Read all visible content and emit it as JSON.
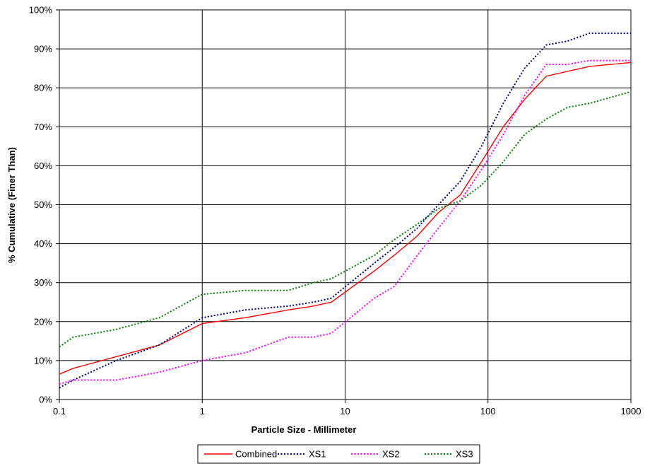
{
  "chart_data": {
    "type": "line",
    "title": "",
    "xlabel": "Particle Size - Millimeter",
    "ylabel": "% Cumulative (Finer Than)",
    "x_scale": "log",
    "xlim": [
      0.1,
      1000
    ],
    "ylim": [
      0,
      100
    ],
    "x_ticks": [
      "0.1",
      "1",
      "10",
      "100",
      "1000"
    ],
    "y_ticks": [
      "0%",
      "10%",
      "20%",
      "30%",
      "40%",
      "50%",
      "60%",
      "70%",
      "80%",
      "90%",
      "100%"
    ],
    "grid": true,
    "legend_position": "bottom",
    "series": [
      {
        "name": "Combined",
        "color": "#ff0000",
        "style": "solid",
        "x": [
          0.1,
          0.125,
          0.25,
          0.5,
          1,
          2,
          4,
          6,
          8,
          16,
          22,
          32,
          45,
          64,
          90,
          128,
          180,
          256,
          512,
          1000
        ],
        "y": [
          6.5,
          8,
          11,
          14,
          19.5,
          21,
          23,
          24,
          25,
          33,
          37,
          42,
          48,
          52.5,
          61,
          70,
          77,
          83,
          85.5,
          86.5
        ]
      },
      {
        "name": "XS1",
        "color": "#000080",
        "style": "dotted",
        "x": [
          0.1,
          0.125,
          0.25,
          0.5,
          1,
          2,
          4,
          6,
          8,
          16,
          22,
          32,
          45,
          64,
          90,
          128,
          180,
          256,
          360,
          512,
          1000
        ],
        "y": [
          3,
          5,
          10,
          14,
          21,
          23,
          24,
          25,
          26,
          35,
          39,
          44,
          50,
          56,
          65,
          76,
          85,
          91,
          92,
          94,
          94
        ]
      },
      {
        "name": "XS2",
        "color": "#ff00ff",
        "style": "dotted",
        "x": [
          0.1,
          0.125,
          0.25,
          0.5,
          1,
          2,
          4,
          6,
          8,
          16,
          22,
          32,
          45,
          64,
          90,
          128,
          180,
          256,
          360,
          512,
          1000
        ],
        "y": [
          4,
          5,
          5,
          7,
          10,
          12,
          16,
          16,
          17,
          26,
          29,
          37,
          44,
          51,
          59,
          68,
          78,
          86,
          86,
          87,
          87
        ]
      },
      {
        "name": "XS3",
        "color": "#008000",
        "style": "dotted",
        "x": [
          0.1,
          0.125,
          0.25,
          0.5,
          1,
          2,
          4,
          6,
          8,
          16,
          22,
          32,
          45,
          64,
          90,
          128,
          180,
          256,
          360,
          512,
          1000
        ],
        "y": [
          13.5,
          16,
          18,
          21,
          27,
          28,
          28,
          30,
          31,
          37,
          41,
          45,
          49,
          51,
          55,
          61,
          68,
          72,
          75,
          76,
          79
        ]
      }
    ]
  }
}
